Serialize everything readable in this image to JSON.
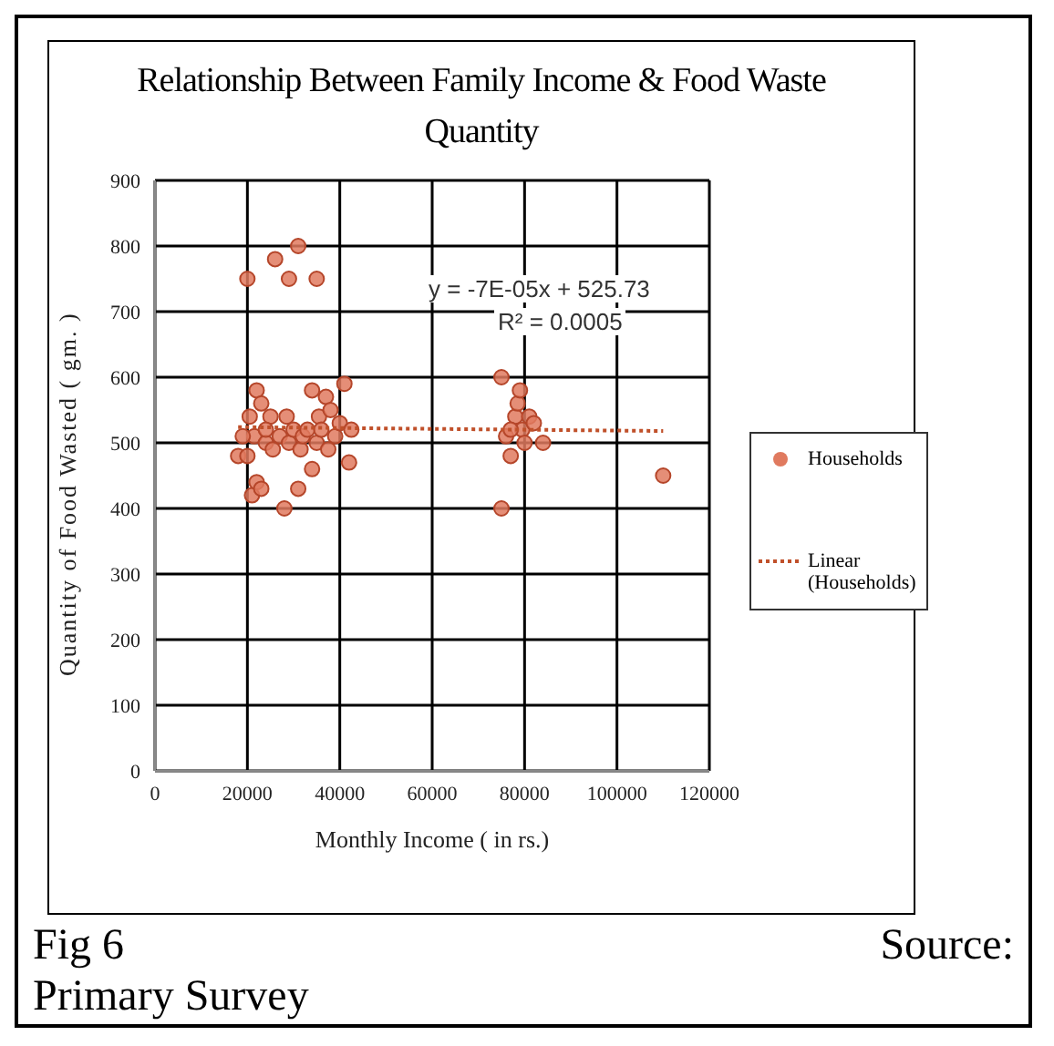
{
  "chart_data": {
    "type": "scatter",
    "title": "Relationship  Between Family Income & Food Waste Quantity",
    "xlabel": "Monthly Income ( in rs.)",
    "ylabel": "Quantity of Food Wasted ( gm. )",
    "xlim": [
      0,
      120000
    ],
    "xticks": [
      0,
      20000,
      40000,
      60000,
      80000,
      100000,
      120000
    ],
    "ylim": [
      0,
      900
    ],
    "yticks": [
      0,
      100,
      200,
      300,
      400,
      500,
      600,
      700,
      800,
      900
    ],
    "grid": true,
    "legend": "right",
    "marker": "circle",
    "series": [
      {
        "name": "Households",
        "color": "#e07a5f",
        "type": "scatter",
        "x": [
          20000,
          26000,
          31000,
          29000,
          35000,
          18000,
          20000,
          20500,
          21000,
          21500,
          22000,
          22000,
          23000,
          23000,
          24000,
          25000,
          25500,
          27000,
          28000,
          28500,
          29000,
          30000,
          31000,
          31500,
          32000,
          33000,
          34000,
          34000,
          35000,
          35500,
          36000,
          37000,
          37500,
          38000,
          39000,
          40000,
          41000,
          42000,
          42500,
          24000,
          19000,
          75000,
          75000,
          76000,
          77000,
          78000,
          78500,
          79000,
          79500,
          80000,
          81000,
          82000,
          84000,
          110000,
          77000
        ],
        "values": [
          750,
          780,
          800,
          750,
          750,
          480,
          480,
          540,
          420,
          510,
          580,
          440,
          430,
          560,
          500,
          540,
          490,
          510,
          400,
          540,
          500,
          520,
          430,
          490,
          510,
          520,
          580,
          460,
          500,
          540,
          520,
          570,
          490,
          550,
          510,
          530,
          590,
          470,
          520,
          520,
          510,
          600,
          400,
          510,
          480,
          540,
          560,
          580,
          520,
          500,
          540,
          530,
          500,
          450,
          520
        ]
      },
      {
        "name": "Linear (Households)",
        "color": "#c0502a",
        "type": "line",
        "line_style": "dotted",
        "marker": "none",
        "x": [
          18000,
          110000
        ],
        "values": [
          524,
          518
        ]
      }
    ],
    "annotations": [
      "y = -7E-05x + 525.73",
      "R² = 0.0005",
      "Fig 6",
      "Source: Primary Survey"
    ]
  }
}
